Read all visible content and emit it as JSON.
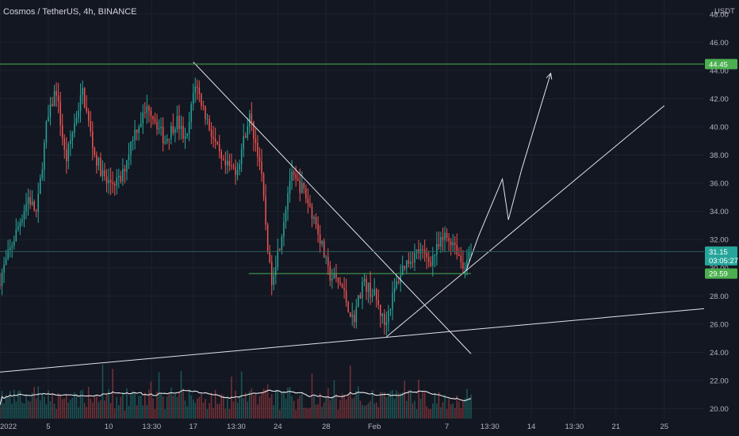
{
  "header": {
    "symbol": "Cosmos / TetherUS, 4h, BINANCE",
    "currency": "USDT"
  },
  "colors": {
    "background": "#131722",
    "grid": "#1e222d",
    "bull": "#26a69a",
    "bear": "#ef5350",
    "level": "#4caf50",
    "drawing": "#e0e3eb",
    "axis_text": "#b2b5be"
  },
  "chart_data": {
    "type": "candlestick",
    "title": "Cosmos / TetherUS, 4h, BINANCE",
    "ylabel": "USDT",
    "ylim": [
      19.3,
      49.0
    ],
    "y_ticks": [
      20,
      22,
      24,
      26,
      28,
      30,
      32,
      34,
      36,
      38,
      40,
      42,
      44,
      46,
      48
    ],
    "y_tick_labels": [
      "20.00",
      "22.00",
      "24.00",
      "26.00",
      "28.00",
      "30.00",
      "32.00",
      "34.00",
      "36.00",
      "38.00",
      "40.00",
      "42.00",
      "44.00",
      "46.00",
      "48.00"
    ],
    "x_ticks": [
      {
        "label": "2022",
        "day": 0
      },
      {
        "label": "5",
        "day": 4
      },
      {
        "label": "10",
        "day": 9
      },
      {
        "label": "13:30",
        "day": 12.56
      },
      {
        "label": "17",
        "day": 16
      },
      {
        "label": "13:30",
        "day": 19.56
      },
      {
        "label": "24",
        "day": 23
      },
      {
        "label": "28",
        "day": 27
      },
      {
        "label": "Feb",
        "day": 31
      },
      {
        "label": "7",
        "day": 37
      },
      {
        "label": "13:30",
        "day": 40.56
      },
      {
        "label": "14",
        "day": 44
      },
      {
        "label": "13:30",
        "day": 47.56
      },
      {
        "label": "21",
        "day": 51
      },
      {
        "label": "25",
        "day": 55
      }
    ],
    "x_domain_days": [
      0,
      58.3
    ],
    "price_anchors": [
      {
        "day": 0,
        "price": 28.8
      },
      {
        "day": 1.5,
        "price": 32.5
      },
      {
        "day": 2.5,
        "price": 35.0
      },
      {
        "day": 3.2,
        "price": 33.8
      },
      {
        "day": 4.0,
        "price": 40.0
      },
      {
        "day": 4.8,
        "price": 42.8
      },
      {
        "day": 5.6,
        "price": 37.5
      },
      {
        "day": 6.4,
        "price": 40.5
      },
      {
        "day": 7.0,
        "price": 42.5
      },
      {
        "day": 8.0,
        "price": 38.0
      },
      {
        "day": 9.0,
        "price": 36.0
      },
      {
        "day": 10.2,
        "price": 36.2
      },
      {
        "day": 11.2,
        "price": 39.5
      },
      {
        "day": 12.5,
        "price": 41.5
      },
      {
        "day": 13.8,
        "price": 39.0
      },
      {
        "day": 14.8,
        "price": 40.5
      },
      {
        "day": 15.6,
        "price": 38.8
      },
      {
        "day": 16.3,
        "price": 43.2
      },
      {
        "day": 17.5,
        "price": 40.0
      },
      {
        "day": 18.6,
        "price": 37.2
      },
      {
        "day": 19.8,
        "price": 37.0
      },
      {
        "day": 20.8,
        "price": 40.8
      },
      {
        "day": 21.7,
        "price": 37.5
      },
      {
        "day": 22.6,
        "price": 29.0
      },
      {
        "day": 23.4,
        "price": 32.0
      },
      {
        "day": 24.2,
        "price": 36.5
      },
      {
        "day": 25.3,
        "price": 35.5
      },
      {
        "day": 26.4,
        "price": 33.0
      },
      {
        "day": 27.4,
        "price": 29.5
      },
      {
        "day": 28.4,
        "price": 28.8
      },
      {
        "day": 29.4,
        "price": 26.2
      },
      {
        "day": 30.2,
        "price": 29.0
      },
      {
        "day": 31.2,
        "price": 28.0
      },
      {
        "day": 32.0,
        "price": 26.0
      },
      {
        "day": 32.9,
        "price": 28.6
      },
      {
        "day": 33.6,
        "price": 30.2
      },
      {
        "day": 34.8,
        "price": 31.2
      },
      {
        "day": 35.8,
        "price": 30.5
      },
      {
        "day": 37.0,
        "price": 32.2
      },
      {
        "day": 37.8,
        "price": 31.8
      },
      {
        "day": 38.5,
        "price": 30.0
      },
      {
        "day": 39.0,
        "price": 31.15
      }
    ],
    "volume_range": [
      0,
      1.0
    ],
    "levels": [
      {
        "name": "resistance",
        "price": 44.45,
        "label": "44.45"
      },
      {
        "name": "support",
        "price": 29.59,
        "label": "29.59"
      }
    ],
    "last_price": {
      "price": 31.15,
      "label": "31.15",
      "countdown": "03:05:27"
    },
    "annotations": [
      {
        "type": "line",
        "name": "downtrend-line",
        "from": {
          "day": 16.0,
          "price": 44.6
        },
        "to": {
          "day": 39.0,
          "price": 23.9
        }
      },
      {
        "type": "line",
        "name": "rising-trend-line",
        "from": {
          "day": 32.0,
          "price": 25.1
        },
        "to": {
          "day": 55.0,
          "price": 41.5
        }
      },
      {
        "type": "line",
        "name": "support-trend-line",
        "from": {
          "day": 0,
          "price": 22.6
        },
        "to": {
          "day": 58.3,
          "price": 27.1
        }
      },
      {
        "type": "line",
        "name": "support-level-line",
        "from": {
          "day": 20.6,
          "price": 29.59
        },
        "to": {
          "day": 39.0,
          "price": 29.59
        }
      },
      {
        "type": "polyline",
        "name": "projection-path",
        "points": [
          {
            "day": 38.6,
            "price": 29.8
          },
          {
            "day": 39.6,
            "price": 32.2
          },
          {
            "day": 41.6,
            "price": 36.3
          },
          {
            "day": 42.1,
            "price": 33.4
          },
          {
            "day": 43.2,
            "price": 37.0
          },
          {
            "day": 45.6,
            "price": 43.8
          }
        ]
      }
    ]
  }
}
